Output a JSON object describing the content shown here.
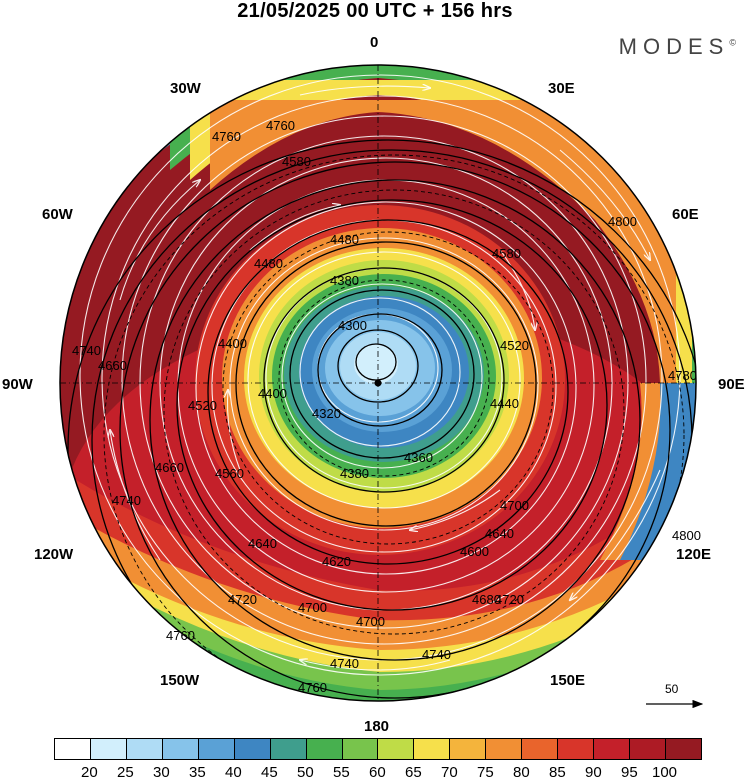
{
  "title": "21/05/2025  00 UTC  + 156 hrs",
  "brand": "MODES",
  "brand_mark": "©",
  "lon_labels": {
    "n": "0",
    "e30": "30E",
    "e60": "60E",
    "e90": "90E",
    "e120": "120E",
    "e150": "150E",
    "s": "180",
    "w150": "150W",
    "w120": "120W",
    "w90": "90W",
    "w60": "60W",
    "w30": "30W"
  },
  "contours": [
    "4300",
    "4320",
    "4360",
    "4380",
    "4400",
    "4440",
    "4480",
    "4520",
    "4560",
    "4580",
    "4600",
    "4620",
    "4640",
    "4660",
    "4680",
    "4700",
    "4720",
    "4740",
    "4760",
    "4780",
    "4800"
  ],
  "reference_vector_label": "50",
  "colorbar": {
    "colors": [
      "#ffffff",
      "#d2effc",
      "#afdcf5",
      "#86c3ea",
      "#5aa1d6",
      "#3e86c2",
      "#3f9e8d",
      "#47b04f",
      "#78c44c",
      "#bfdc47",
      "#f6e04b",
      "#f4b43c",
      "#f18f34",
      "#e9642c",
      "#d8352a",
      "#c4202a",
      "#ad1b25",
      "#951a22"
    ],
    "ticks": [
      "20",
      "25",
      "30",
      "35",
      "40",
      "45",
      "50",
      "55",
      "60",
      "65",
      "70",
      "75",
      "80",
      "85",
      "90",
      "95",
      "100"
    ]
  }
}
